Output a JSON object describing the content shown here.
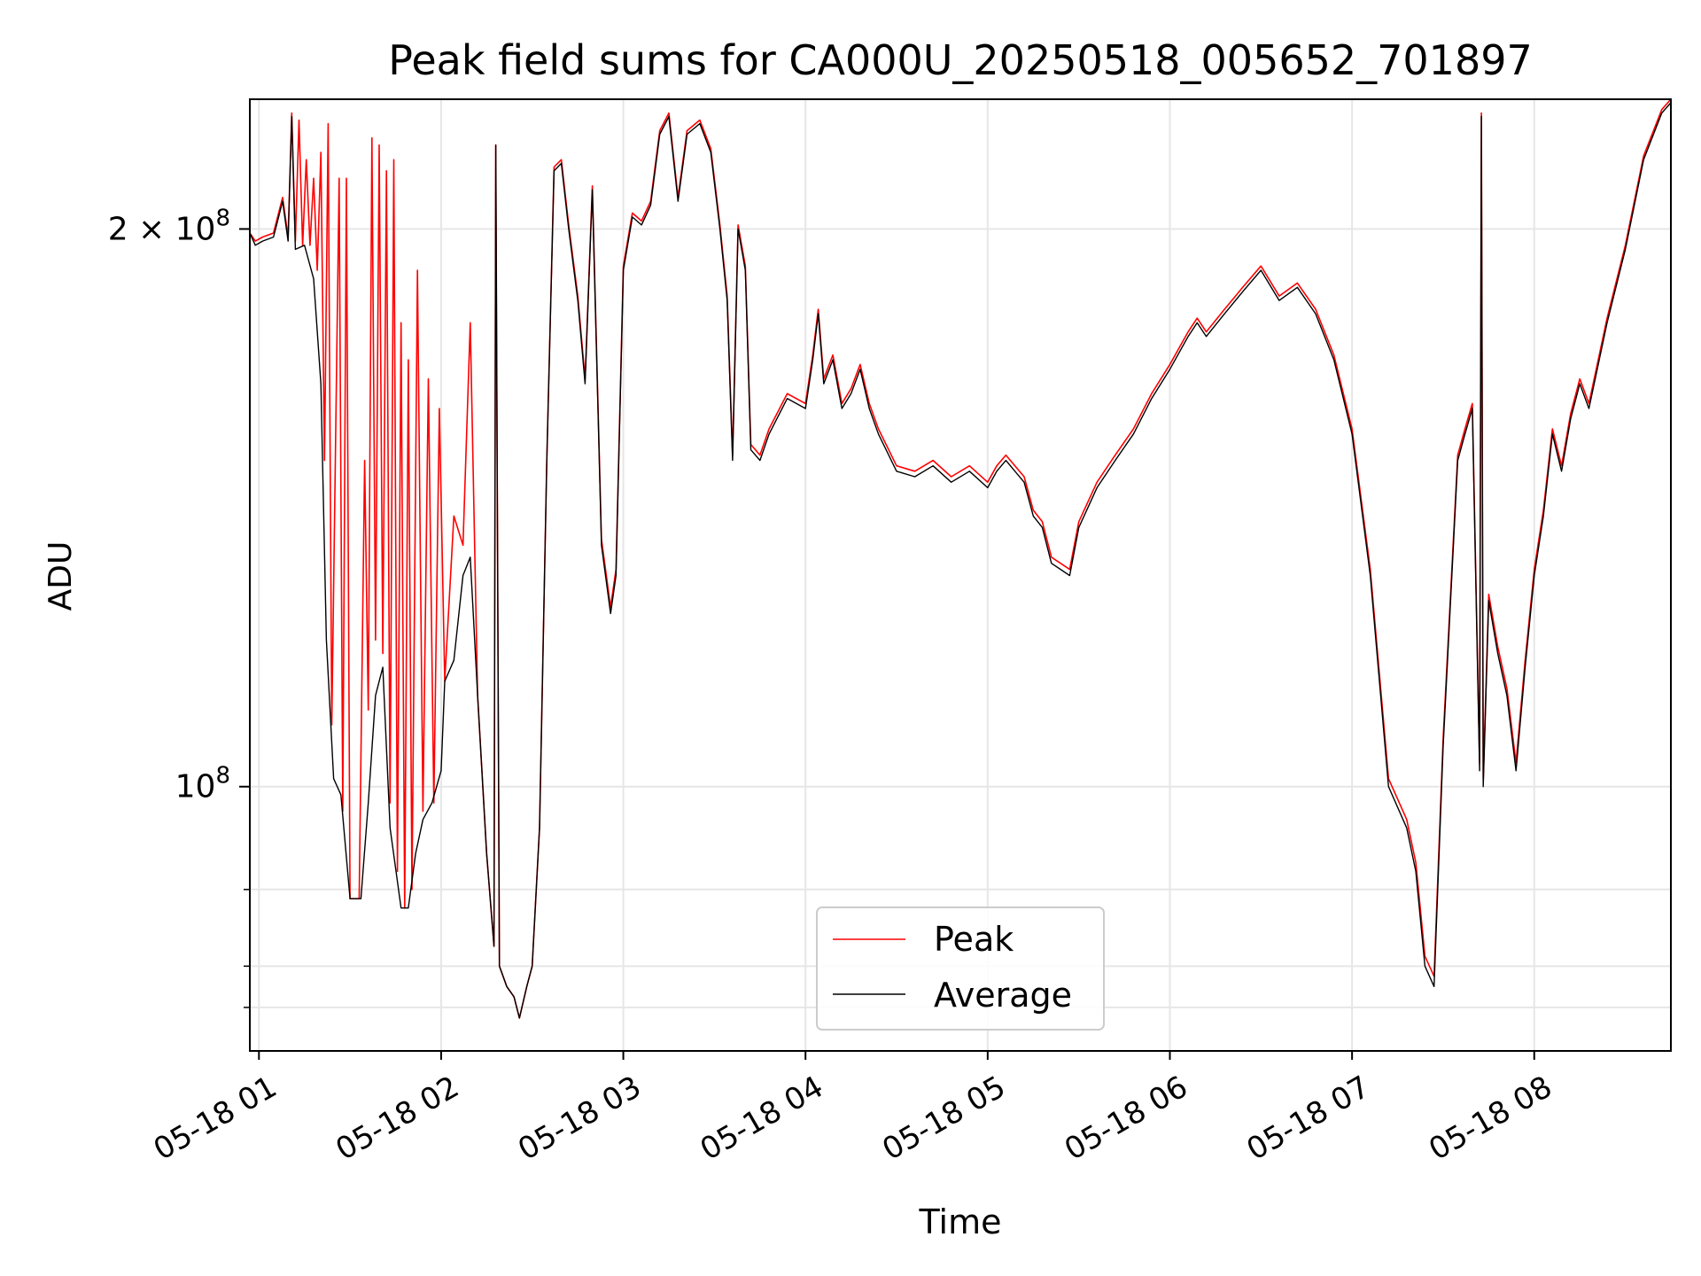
{
  "chart_data": {
    "type": "line",
    "title": "Peak field sums for CA000U_20250518_005652_701897",
    "xlabel": "Time",
    "ylabel": "ADU",
    "yscale": "log",
    "ylim": [
      72000000,
      235000000
    ],
    "x_range_hours": [
      0.95,
      8.75
    ],
    "x_ticks": [
      {
        "value": 1,
        "label": "05-18 01"
      },
      {
        "value": 2,
        "label": "05-18 02"
      },
      {
        "value": 3,
        "label": "05-18 03"
      },
      {
        "value": 4,
        "label": "05-18 04"
      },
      {
        "value": 5,
        "label": "05-18 05"
      },
      {
        "value": 6,
        "label": "05-18 06"
      },
      {
        "value": 7,
        "label": "05-18 07"
      },
      {
        "value": 8,
        "label": "05-18 08"
      }
    ],
    "y_ticks_major": [
      {
        "value": 100000000,
        "base": "10",
        "exp": "8"
      },
      {
        "value": 200000000,
        "base": "2 × 10",
        "exp": "8"
      }
    ],
    "y_ticks_minor": [
      76000000,
      80000000,
      88000000
    ],
    "grid": true,
    "legend_position": "lower center",
    "series": [
      {
        "name": "Average",
        "color": "#000000",
        "points": [
          [
            0.95,
            199
          ],
          [
            0.98,
            196
          ],
          [
            1.02,
            197
          ],
          [
            1.08,
            198
          ],
          [
            1.13,
            207
          ],
          [
            1.16,
            197
          ],
          [
            1.18,
            230
          ],
          [
            1.2,
            195
          ],
          [
            1.25,
            196
          ],
          [
            1.3,
            188
          ],
          [
            1.34,
            165
          ],
          [
            1.37,
            120
          ],
          [
            1.41,
            101
          ],
          [
            1.45,
            99
          ],
          [
            1.5,
            87
          ],
          [
            1.56,
            87
          ],
          [
            1.6,
            98
          ],
          [
            1.64,
            112
          ],
          [
            1.68,
            116
          ],
          [
            1.72,
            95
          ],
          [
            1.78,
            86
          ],
          [
            1.82,
            86
          ],
          [
            1.86,
            92
          ],
          [
            1.9,
            96
          ],
          [
            1.95,
            98
          ],
          [
            2.0,
            102
          ],
          [
            2.02,
            114
          ],
          [
            2.07,
            117
          ],
          [
            2.12,
            130
          ],
          [
            2.16,
            133
          ],
          [
            2.2,
            112
          ],
          [
            2.25,
            92
          ],
          [
            2.29,
            82
          ],
          [
            2.3,
            222
          ],
          [
            2.32,
            80
          ],
          [
            2.36,
            78
          ],
          [
            2.4,
            77
          ],
          [
            2.43,
            75
          ],
          [
            2.47,
            78
          ],
          [
            2.5,
            80
          ],
          [
            2.54,
            95
          ],
          [
            2.58,
            150
          ],
          [
            2.62,
            215
          ],
          [
            2.66,
            217
          ],
          [
            2.7,
            200
          ],
          [
            2.75,
            183
          ],
          [
            2.79,
            165
          ],
          [
            2.83,
            210
          ],
          [
            2.88,
            135
          ],
          [
            2.93,
            124
          ],
          [
            2.96,
            130
          ],
          [
            3.0,
            190
          ],
          [
            3.05,
            203
          ],
          [
            3.1,
            201
          ],
          [
            3.15,
            206
          ],
          [
            3.2,
            225
          ],
          [
            3.25,
            230
          ],
          [
            3.3,
            207
          ],
          [
            3.35,
            225
          ],
          [
            3.42,
            228
          ],
          [
            3.48,
            220
          ],
          [
            3.53,
            200
          ],
          [
            3.57,
            183
          ],
          [
            3.6,
            150
          ],
          [
            3.63,
            200
          ],
          [
            3.67,
            190
          ],
          [
            3.7,
            152
          ],
          [
            3.75,
            150
          ],
          [
            3.8,
            155
          ],
          [
            3.9,
            162
          ],
          [
            4.0,
            160
          ],
          [
            4.04,
            170
          ],
          [
            4.07,
            180
          ],
          [
            4.1,
            165
          ],
          [
            4.15,
            170
          ],
          [
            4.2,
            160
          ],
          [
            4.25,
            163
          ],
          [
            4.3,
            168
          ],
          [
            4.35,
            160
          ],
          [
            4.4,
            155
          ],
          [
            4.5,
            148
          ],
          [
            4.6,
            147
          ],
          [
            4.7,
            149
          ],
          [
            4.8,
            146
          ],
          [
            4.9,
            148
          ],
          [
            5.0,
            145
          ],
          [
            5.05,
            148
          ],
          [
            5.1,
            150
          ],
          [
            5.2,
            146
          ],
          [
            5.25,
            140
          ],
          [
            5.3,
            138
          ],
          [
            5.35,
            132
          ],
          [
            5.45,
            130
          ],
          [
            5.5,
            138
          ],
          [
            5.6,
            145
          ],
          [
            5.7,
            150
          ],
          [
            5.8,
            155
          ],
          [
            5.9,
            162
          ],
          [
            6.0,
            168
          ],
          [
            6.1,
            175
          ],
          [
            6.15,
            178
          ],
          [
            6.2,
            175
          ],
          [
            6.3,
            180
          ],
          [
            6.4,
            185
          ],
          [
            6.5,
            190
          ],
          [
            6.6,
            183
          ],
          [
            6.7,
            186
          ],
          [
            6.8,
            180
          ],
          [
            6.9,
            170
          ],
          [
            7.0,
            155
          ],
          [
            7.1,
            130
          ],
          [
            7.2,
            100
          ],
          [
            7.3,
            95
          ],
          [
            7.35,
            90
          ],
          [
            7.4,
            80
          ],
          [
            7.45,
            78
          ],
          [
            7.5,
            105
          ],
          [
            7.58,
            150
          ],
          [
            7.62,
            155
          ],
          [
            7.66,
            160
          ],
          [
            7.7,
            102
          ],
          [
            7.71,
            230
          ],
          [
            7.72,
            100
          ],
          [
            7.75,
            126
          ],
          [
            7.8,
            118
          ],
          [
            7.85,
            112
          ],
          [
            7.9,
            102
          ],
          [
            7.95,
            116
          ],
          [
            8.0,
            130
          ],
          [
            8.05,
            140
          ],
          [
            8.1,
            155
          ],
          [
            8.15,
            148
          ],
          [
            8.2,
            158
          ],
          [
            8.25,
            165
          ],
          [
            8.3,
            160
          ],
          [
            8.4,
            178
          ],
          [
            8.5,
            195
          ],
          [
            8.6,
            218
          ],
          [
            8.7,
            231
          ],
          [
            8.75,
            234
          ]
        ]
      },
      {
        "name": "Peak",
        "color": "#ff0000",
        "points": [
          [
            0.95,
            199
          ],
          [
            0.98,
            197
          ],
          [
            1.02,
            198
          ],
          [
            1.08,
            199
          ],
          [
            1.13,
            208
          ],
          [
            1.16,
            198
          ],
          [
            1.18,
            231
          ],
          [
            1.2,
            197
          ],
          [
            1.22,
            229
          ],
          [
            1.24,
            196
          ],
          [
            1.26,
            218
          ],
          [
            1.28,
            196
          ],
          [
            1.3,
            213
          ],
          [
            1.32,
            190
          ],
          [
            1.34,
            220
          ],
          [
            1.36,
            150
          ],
          [
            1.38,
            228
          ],
          [
            1.4,
            108
          ],
          [
            1.44,
            213
          ],
          [
            1.46,
            97
          ],
          [
            1.48,
            213
          ],
          [
            1.5,
            87
          ],
          [
            1.55,
            87
          ],
          [
            1.58,
            150
          ],
          [
            1.6,
            110
          ],
          [
            1.62,
            224
          ],
          [
            1.64,
            120
          ],
          [
            1.66,
            222
          ],
          [
            1.68,
            118
          ],
          [
            1.7,
            215
          ],
          [
            1.72,
            98
          ],
          [
            1.74,
            218
          ],
          [
            1.76,
            90
          ],
          [
            1.78,
            178
          ],
          [
            1.8,
            86
          ],
          [
            1.82,
            170
          ],
          [
            1.84,
            88
          ],
          [
            1.87,
            190
          ],
          [
            1.9,
            97
          ],
          [
            1.93,
            166
          ],
          [
            1.96,
            98
          ],
          [
            1.99,
            160
          ],
          [
            2.02,
            114
          ],
          [
            2.07,
            140
          ],
          [
            2.12,
            135
          ],
          [
            2.16,
            178
          ],
          [
            2.2,
            112
          ],
          [
            2.25,
            92
          ],
          [
            2.29,
            82
          ],
          [
            2.3,
            222
          ],
          [
            2.32,
            80
          ],
          [
            2.36,
            78
          ],
          [
            2.4,
            77
          ],
          [
            2.43,
            75
          ],
          [
            2.47,
            78
          ],
          [
            2.5,
            80
          ],
          [
            2.54,
            95
          ],
          [
            2.58,
            150
          ],
          [
            2.62,
            216
          ],
          [
            2.66,
            218
          ],
          [
            2.7,
            201
          ],
          [
            2.75,
            184
          ],
          [
            2.79,
            166
          ],
          [
            2.83,
            211
          ],
          [
            2.88,
            136
          ],
          [
            2.93,
            125
          ],
          [
            2.96,
            131
          ],
          [
            3.0,
            191
          ],
          [
            3.05,
            204
          ],
          [
            3.1,
            202
          ],
          [
            3.15,
            207
          ],
          [
            3.2,
            226
          ],
          [
            3.25,
            231
          ],
          [
            3.3,
            208
          ],
          [
            3.35,
            226
          ],
          [
            3.42,
            229
          ],
          [
            3.48,
            221
          ],
          [
            3.53,
            201
          ],
          [
            3.57,
            184
          ],
          [
            3.6,
            151
          ],
          [
            3.63,
            201
          ],
          [
            3.67,
            191
          ],
          [
            3.7,
            153
          ],
          [
            3.75,
            151
          ],
          [
            3.8,
            156
          ],
          [
            3.9,
            163
          ],
          [
            4.0,
            161
          ],
          [
            4.04,
            171
          ],
          [
            4.07,
            181
          ],
          [
            4.1,
            166
          ],
          [
            4.15,
            171
          ],
          [
            4.2,
            161
          ],
          [
            4.25,
            164
          ],
          [
            4.3,
            169
          ],
          [
            4.35,
            161
          ],
          [
            4.4,
            156
          ],
          [
            4.5,
            149
          ],
          [
            4.6,
            148
          ],
          [
            4.7,
            150
          ],
          [
            4.8,
            147
          ],
          [
            4.9,
            149
          ],
          [
            5.0,
            146
          ],
          [
            5.05,
            149
          ],
          [
            5.1,
            151
          ],
          [
            5.2,
            147
          ],
          [
            5.25,
            141
          ],
          [
            5.3,
            139
          ],
          [
            5.35,
            133
          ],
          [
            5.45,
            131
          ],
          [
            5.5,
            139
          ],
          [
            5.6,
            146
          ],
          [
            5.7,
            151
          ],
          [
            5.8,
            156
          ],
          [
            5.9,
            163
          ],
          [
            6.0,
            169
          ],
          [
            6.1,
            176
          ],
          [
            6.15,
            179
          ],
          [
            6.2,
            176
          ],
          [
            6.3,
            181
          ],
          [
            6.4,
            186
          ],
          [
            6.5,
            191
          ],
          [
            6.6,
            184
          ],
          [
            6.7,
            187
          ],
          [
            6.8,
            181
          ],
          [
            6.9,
            171
          ],
          [
            7.0,
            156
          ],
          [
            7.1,
            131
          ],
          [
            7.2,
            101
          ],
          [
            7.3,
            96
          ],
          [
            7.35,
            91
          ],
          [
            7.4,
            81
          ],
          [
            7.45,
            79
          ],
          [
            7.5,
            106
          ],
          [
            7.58,
            151
          ],
          [
            7.62,
            156
          ],
          [
            7.66,
            161
          ],
          [
            7.7,
            103
          ],
          [
            7.71,
            231
          ],
          [
            7.72,
            101
          ],
          [
            7.75,
            127
          ],
          [
            7.8,
            119
          ],
          [
            7.85,
            113
          ],
          [
            7.9,
            103
          ],
          [
            7.95,
            117
          ],
          [
            8.0,
            131
          ],
          [
            8.05,
            141
          ],
          [
            8.1,
            156
          ],
          [
            8.15,
            149
          ],
          [
            8.2,
            159
          ],
          [
            8.25,
            166
          ],
          [
            8.3,
            161
          ],
          [
            8.4,
            179
          ],
          [
            8.5,
            196
          ],
          [
            8.6,
            219
          ],
          [
            8.7,
            232
          ],
          [
            8.75,
            235
          ]
        ]
      }
    ]
  }
}
